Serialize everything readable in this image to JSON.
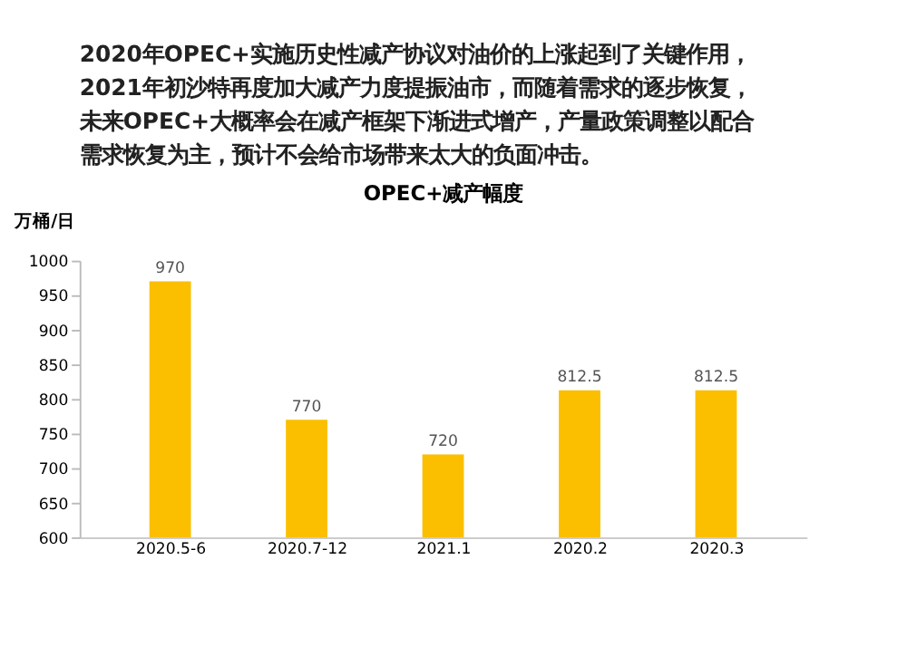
{
  "chart_data": {
    "type": "bar",
    "title": "OPEC+减产幅度",
    "ylabel": "万桶/日",
    "annotations": [
      "2020年OPEC+实施历史性减产协议对油价的上涨起到了关键作用，",
      "2021年初沙特再度加大减产力度提振油市，而随着需求的逐步恢复，",
      "未来OPEC+大概率会在减产框架下渐进式增产，产量政策调整以配合",
      "需求恢复为主，预计不会给市场带来太大的负面冲击。"
    ],
    "categories": [
      "2020.5-6",
      "2020.7-12",
      "2021.1",
      "2020.2",
      "2020.3"
    ],
    "values": [
      970,
      770,
      720,
      812.5,
      812.5
    ],
    "color": "#fbbf00",
    "ylim": [
      600,
      1000
    ],
    "yticks": [
      600,
      650,
      700,
      750,
      800,
      850,
      900,
      950,
      1000
    ],
    "data_labels": true,
    "grid": false
  }
}
